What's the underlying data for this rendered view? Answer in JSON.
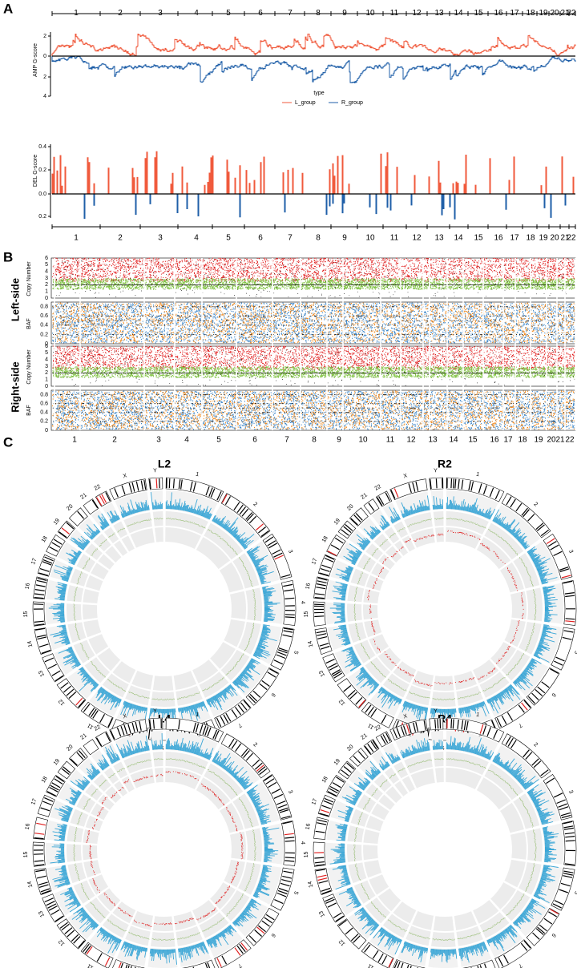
{
  "panels": {
    "A": {
      "label": "A",
      "amp": {
        "axis_label": "AMP G-score",
        "ticks": [
          "2",
          "0",
          "2",
          "4"
        ]
      },
      "legend": {
        "title": "type",
        "items": [
          "L_group",
          "R_group"
        ]
      },
      "del": {
        "axis_label": "DEL G-score",
        "ticks": [
          "0.4",
          "0.2",
          "0.0",
          "0.2"
        ]
      },
      "chromosomes": [
        "1",
        "2",
        "3",
        "4",
        "5",
        "6",
        "7",
        "8",
        "9",
        "10",
        "11",
        "12",
        "13",
        "14",
        "15",
        "16",
        "17",
        "18",
        "19",
        "20",
        "21",
        "22"
      ]
    },
    "B": {
      "label": "B",
      "rows": [
        "Left-side",
        "Right-side"
      ],
      "cn_label": "Copy Number",
      "cn_ticks": [
        "0",
        "1",
        "2",
        "3",
        "4",
        "5",
        "6"
      ],
      "baf_label": "BAF",
      "baf_ticks": [
        "0",
        "0.2",
        "0.4",
        "0.6",
        "0.8"
      ],
      "chromosomes": [
        "1",
        "2",
        "3",
        "4",
        "5",
        "6",
        "7",
        "8",
        "9",
        "10",
        "11",
        "12",
        "13",
        "14",
        "15",
        "16",
        "17",
        "18",
        "19",
        "20",
        "21",
        "22"
      ]
    },
    "C": {
      "label": "C",
      "plots": [
        "L2",
        "R2",
        "L4",
        "R4"
      ],
      "chromosomes": [
        "1",
        "2",
        "3",
        "4",
        "5",
        "6",
        "7",
        "8",
        "9",
        "10",
        "11",
        "12",
        "13",
        "14",
        "15",
        "16",
        "17",
        "18",
        "19",
        "20",
        "21",
        "22",
        "X",
        "Y"
      ]
    }
  }
}
